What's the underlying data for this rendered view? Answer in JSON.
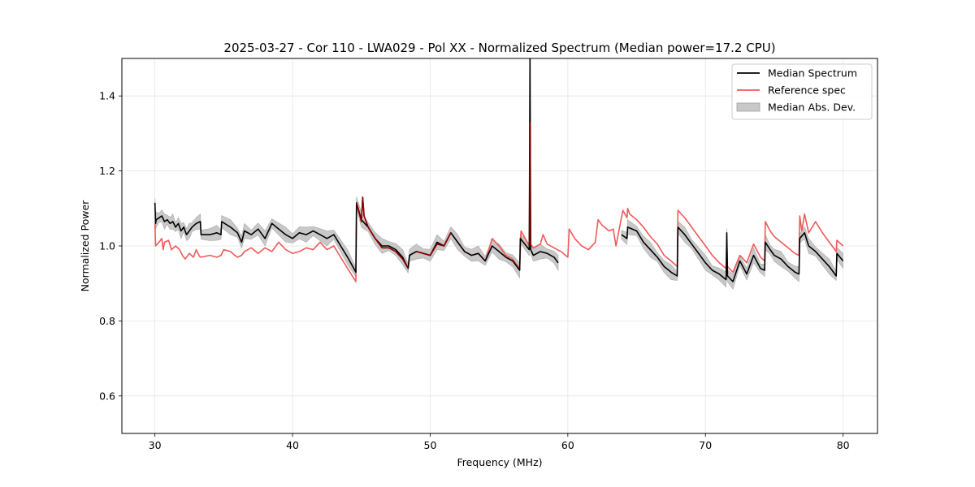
{
  "chart_data": {
    "type": "line",
    "title": "2025-03-27 - Cor 110 - LWA029 - Pol XX - Normalized Spectrum (Median power=17.2 CPU)",
    "xlabel": "Frequency (MHz)",
    "ylabel": "Normalized Power",
    "xlim": [
      27.6,
      82.5
    ],
    "ylim": [
      0.5,
      1.5
    ],
    "xticks": [
      30,
      40,
      50,
      60,
      70,
      80
    ],
    "xtick_labels": [
      "30",
      "40",
      "50",
      "60",
      "70",
      "80"
    ],
    "yticks": [
      0.6,
      0.8,
      1.0,
      1.2,
      1.4
    ],
    "ytick_labels": [
      "0.6",
      "0.8",
      "1.0",
      "1.2",
      "1.4"
    ],
    "grid": true,
    "legend_position": "top-right",
    "legend": [
      "Median Spectrum",
      "Reference spec",
      "Median Abs. Dev."
    ],
    "colors": {
      "median": "#000000",
      "reference": "#f05a5a",
      "mad_fill": "#c8c8c8",
      "overlap": "#8b0000",
      "grid": "#e5e5e5"
    },
    "series": [
      {
        "name": "Median Spectrum",
        "segments": [
          {
            "x": [
              30.0,
              30.05,
              30.1,
              30.3,
              30.5,
              30.7,
              30.9,
              31.1,
              31.3,
              31.5,
              31.7,
              31.9,
              32.1,
              32.3,
              32.5,
              32.7,
              33.0,
              33.3,
              33.35,
              34.0,
              34.5,
              34.8,
              34.85,
              35.5,
              36.0,
              36.3,
              36.5,
              37.0,
              37.5,
              38.0,
              38.5,
              39.0,
              39.5,
              40.0,
              40.5,
              41.0,
              41.5,
              42.0,
              42.5,
              43.0,
              43.5,
              44.0,
              44.6,
              44.65,
              45.0,
              45.5,
              46.0,
              46.5,
              47.0,
              47.5,
              48.0,
              48.4,
              48.5,
              49.0,
              49.5,
              50.0,
              50.5,
              51.0,
              51.5,
              52.0,
              52.5,
              53.0,
              53.5,
              54.0,
              54.5,
              55.0,
              55.5,
              56.0,
              56.5,
              56.55,
              57.2,
              57.25,
              57.3,
              57.5,
              58.0,
              58.5,
              59.0,
              59.3
            ],
            "y": [
              1.115,
              1.06,
              1.07,
              1.075,
              1.08,
              1.065,
              1.07,
              1.06,
              1.065,
              1.05,
              1.06,
              1.04,
              1.05,
              1.03,
              1.04,
              1.05,
              1.06,
              1.065,
              1.03,
              1.03,
              1.035,
              1.03,
              1.065,
              1.05,
              1.035,
              1.01,
              1.04,
              1.03,
              1.045,
              1.02,
              1.06,
              1.045,
              1.03,
              1.02,
              1.035,
              1.03,
              1.04,
              1.03,
              1.02,
              1.03,
              1.0,
              0.97,
              0.93,
              1.115,
              1.07,
              1.05,
              1.02,
              1.0,
              1.0,
              0.99,
              0.97,
              0.94,
              0.975,
              0.985,
              0.98,
              0.975,
              1.01,
              1.0,
              1.035,
              1.01,
              0.985,
              0.975,
              0.98,
              0.96,
              1.0,
              0.985,
              0.97,
              0.96,
              0.935,
              1.02,
              0.99,
              1.5,
              0.99,
              0.975,
              0.985,
              0.98,
              0.97,
              0.955
            ]
          },
          {
            "x": [
              63.9,
              64.3,
              64.35,
              65.0,
              65.5,
              66.0,
              66.5,
              67.0,
              67.5,
              67.95,
              68.0,
              68.5,
              69.0,
              69.5,
              70.0,
              70.5,
              71.0,
              71.5,
              71.55,
              71.6,
              72.0,
              72.5,
              73.0,
              73.5,
              74.0,
              74.3,
              74.35,
              74.7,
              75.0,
              75.5,
              76.0,
              76.5,
              76.8,
              76.85,
              77.2,
              77.5,
              78.0,
              78.5,
              79.0,
              79.5,
              79.55,
              80.0
            ],
            "y": [
              1.03,
              1.02,
              1.05,
              1.04,
              1.01,
              0.99,
              0.97,
              0.945,
              0.93,
              0.92,
              1.05,
              1.03,
              1.005,
              0.98,
              0.955,
              0.935,
              0.925,
              0.91,
              1.035,
              0.92,
              0.905,
              0.96,
              0.925,
              0.975,
              0.94,
              0.935,
              1.01,
              0.99,
              0.975,
              0.965,
              0.945,
              0.93,
              0.925,
              1.02,
              1.035,
              1.0,
              0.985,
              0.965,
              0.945,
              0.92,
              0.98,
              0.96
            ]
          }
        ]
      },
      {
        "name": "Reference spec",
        "x": [
          30.0,
          30.05,
          30.3,
          30.5,
          30.6,
          30.7,
          31.0,
          31.2,
          31.5,
          31.8,
          32.0,
          32.2,
          32.5,
          32.8,
          33.0,
          33.2,
          33.3,
          34.0,
          34.5,
          34.8,
          35.0,
          35.5,
          35.8,
          36.0,
          36.3,
          36.5,
          37.0,
          37.5,
          38.0,
          38.5,
          39.0,
          39.5,
          40.0,
          40.5,
          41.0,
          41.5,
          42.0,
          42.5,
          43.0,
          43.5,
          44.0,
          44.6,
          44.65,
          45.0,
          45.1,
          45.2,
          45.5,
          46.0,
          46.5,
          47.0,
          47.5,
          48.0,
          48.4,
          48.5,
          49.0,
          49.5,
          50.0,
          50.5,
          51.0,
          51.5,
          52.0,
          52.5,
          53.0,
          53.5,
          54.0,
          54.5,
          55.0,
          55.5,
          56.0,
          56.5,
          56.6,
          57.2,
          57.25,
          57.3,
          57.5,
          58.0,
          58.2,
          58.5,
          59.0,
          59.5,
          60.0,
          60.1,
          60.5,
          61.0,
          61.5,
          62.0,
          62.2,
          62.5,
          63.0,
          63.3,
          63.5,
          64.0,
          64.3,
          64.35,
          64.5,
          65.0,
          65.5,
          66.0,
          66.5,
          67.0,
          67.5,
          67.95,
          68.0,
          68.5,
          69.0,
          69.5,
          70.0,
          70.5,
          71.0,
          71.5,
          71.55,
          71.6,
          72.0,
          72.5,
          73.0,
          73.5,
          74.0,
          74.3,
          74.35,
          74.7,
          75.0,
          75.5,
          76.0,
          76.5,
          76.8,
          76.85,
          77.0,
          77.2,
          77.5,
          78.0,
          78.5,
          79.0,
          79.5,
          79.55,
          80.0
        ],
        "y": [
          1.06,
          1.0,
          1.01,
          1.02,
          0.99,
          1.01,
          1.015,
          0.99,
          1.0,
          0.99,
          0.975,
          0.965,
          0.98,
          0.97,
          0.99,
          0.975,
          0.97,
          0.975,
          0.97,
          0.975,
          0.99,
          0.985,
          0.975,
          0.97,
          0.975,
          0.985,
          0.995,
          0.98,
          0.995,
          0.985,
          1.01,
          0.99,
          0.98,
          0.985,
          0.995,
          0.99,
          1.01,
          0.99,
          1.0,
          0.97,
          0.94,
          0.905,
          1.115,
          1.065,
          1.13,
          1.08,
          1.05,
          1.02,
          0.995,
          0.995,
          0.985,
          0.965,
          0.94,
          0.975,
          0.985,
          0.98,
          0.975,
          1.005,
          1.0,
          1.035,
          1.01,
          0.985,
          0.975,
          0.98,
          0.96,
          1.02,
          1.0,
          0.975,
          0.965,
          0.94,
          1.04,
          1.0,
          1.33,
          1.005,
          0.995,
          1.005,
          1.03,
          1.005,
          0.995,
          0.985,
          0.97,
          1.045,
          1.02,
          1.0,
          0.99,
          1.01,
          1.07,
          1.055,
          1.04,
          1.045,
          1.0,
          1.095,
          1.075,
          1.1,
          1.085,
          1.07,
          1.05,
          1.025,
          1.005,
          0.975,
          0.96,
          0.945,
          1.095,
          1.075,
          1.05,
          1.025,
          1.0,
          0.975,
          0.955,
          0.94,
          1.015,
          0.945,
          0.93,
          0.975,
          0.955,
          1.005,
          0.97,
          0.96,
          1.065,
          1.04,
          1.025,
          1.01,
          0.995,
          0.98,
          0.975,
          1.08,
          1.04,
          1.085,
          1.035,
          1.065,
          1.035,
          1.01,
          0.985,
          1.015,
          1.0
        ]
      },
      {
        "name": "Median Abs. Dev.",
        "type": "band",
        "description": "half-width of shaded band around the median spectrum, in power units",
        "half_width": [
          0.012,
          0.02
        ]
      }
    ]
  }
}
